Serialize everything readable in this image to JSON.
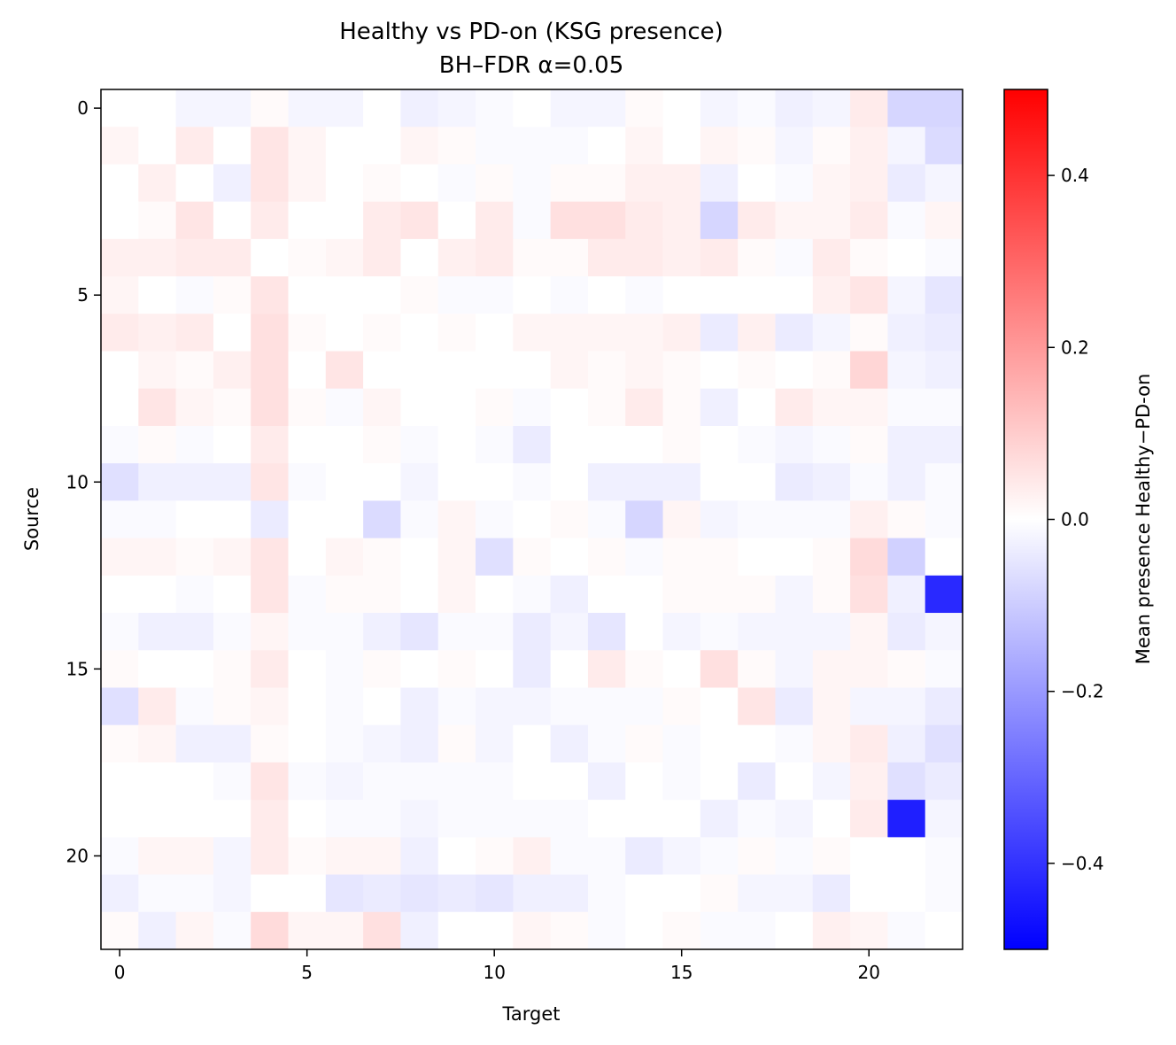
{
  "chart_data": {
    "type": "heatmap",
    "title": "Healthy vs PD-on (KSG presence)",
    "subtitle": "BH–FDR α=0.05",
    "xlabel": "Target",
    "ylabel": "Source",
    "colorbar_label": "Mean presence Healthy−PD-on",
    "x_ticks": [
      0,
      5,
      10,
      15,
      20
    ],
    "y_ticks": [
      0,
      5,
      10,
      15,
      20
    ],
    "x_tick_labels": [
      "0",
      "5",
      "10",
      "15",
      "20"
    ],
    "y_tick_labels": [
      "0",
      "5",
      "10",
      "15",
      "20"
    ],
    "colorbar_ticks": [
      -0.4,
      -0.2,
      0.0,
      0.2,
      0.4
    ],
    "colorbar_tick_labels": [
      "−0.4",
      "−0.2",
      "0.0",
      "0.2",
      "0.4"
    ],
    "vmin": -0.5,
    "vmax": 0.5,
    "colormap": "bwr",
    "grid": false,
    "rows": 23,
    "cols": 23,
    "values": [
      [
        0,
        0,
        -0.02,
        -0.02,
        0.01,
        -0.02,
        -0.02,
        0,
        -0.03,
        -0.02,
        -0.01,
        0,
        -0.02,
        -0.02,
        0.01,
        0,
        -0.02,
        -0.01,
        -0.03,
        -0.02,
        0.04,
        -0.08,
        -0.08
      ],
      [
        0.02,
        0,
        0.04,
        0,
        0.05,
        0.02,
        0,
        0,
        0.02,
        0.01,
        -0.01,
        -0.01,
        -0.01,
        0,
        0.02,
        0,
        0.02,
        0.01,
        -0.02,
        0.01,
        0.03,
        -0.02,
        -0.07
      ],
      [
        0,
        0.03,
        0,
        -0.03,
        0.05,
        0.02,
        0,
        0.01,
        0,
        -0.01,
        0.01,
        -0.01,
        0.01,
        0.01,
        0.03,
        0.03,
        -0.03,
        0,
        -0.01,
        0.02,
        0.03,
        -0.04,
        -0.02
      ],
      [
        0,
        0.01,
        0.05,
        0,
        0.04,
        0,
        0,
        0.04,
        0.05,
        0,
        0.04,
        -0.01,
        0.06,
        0.06,
        0.04,
        0.03,
        -0.08,
        0.04,
        0.02,
        0.02,
        0.04,
        -0.01,
        0.02
      ],
      [
        0.03,
        0.03,
        0.04,
        0.04,
        0,
        0.01,
        0.02,
        0.04,
        0,
        0.03,
        0.04,
        0.01,
        0.01,
        0.04,
        0.04,
        0.03,
        0.04,
        0.01,
        -0.01,
        0.04,
        0.01,
        0,
        -0.01
      ],
      [
        0.02,
        0,
        -0.01,
        0.01,
        0.05,
        0,
        0,
        0,
        0.01,
        -0.01,
        -0.01,
        0,
        -0.01,
        0,
        -0.01,
        0,
        0,
        0,
        0,
        0.03,
        0.05,
        -0.02,
        -0.05
      ],
      [
        0.04,
        0.03,
        0.04,
        0,
        0.06,
        0.01,
        0,
        0.01,
        0,
        0.01,
        0,
        0.02,
        0.02,
        0.02,
        0.02,
        0.03,
        -0.04,
        0.03,
        -0.04,
        -0.02,
        0.01,
        -0.03,
        -0.04
      ],
      [
        0,
        0.02,
        0.01,
        0.03,
        0.06,
        0,
        0.05,
        0,
        0,
        0,
        0,
        0,
        0.02,
        0.01,
        0.02,
        0.01,
        0,
        0.01,
        0,
        0.01,
        0.08,
        -0.02,
        -0.03
      ],
      [
        0,
        0.05,
        0.02,
        0.01,
        0.06,
        0.01,
        -0.01,
        0.02,
        0,
        0,
        0.01,
        -0.01,
        0,
        0.01,
        0.04,
        0.01,
        -0.03,
        0,
        0.04,
        0.02,
        0.02,
        -0.01,
        -0.01
      ],
      [
        -0.01,
        0.01,
        -0.01,
        0,
        0.04,
        0,
        0,
        0.01,
        -0.01,
        0,
        -0.01,
        -0.04,
        0,
        0,
        0,
        0.01,
        0,
        -0.01,
        -0.02,
        -0.01,
        0.01,
        -0.03,
        -0.03
      ],
      [
        -0.06,
        -0.03,
        -0.03,
        -0.03,
        0.05,
        -0.01,
        0,
        0,
        -0.02,
        0,
        0,
        -0.01,
        0,
        -0.03,
        -0.03,
        -0.03,
        0,
        0,
        -0.04,
        -0.03,
        -0.01,
        -0.03,
        -0.01
      ],
      [
        -0.01,
        -0.01,
        0,
        0,
        -0.04,
        0,
        0,
        -0.07,
        -0.01,
        0.02,
        -0.01,
        0,
        0.01,
        -0.01,
        -0.08,
        0.02,
        -0.02,
        -0.01,
        -0.01,
        -0.01,
        0.03,
        0.01,
        -0.01
      ],
      [
        0.02,
        0.02,
        0.01,
        0.02,
        0.05,
        0,
        0.02,
        0.01,
        0,
        0.02,
        -0.06,
        0.01,
        0,
        0.01,
        -0.01,
        0.01,
        0.01,
        0,
        0,
        0.01,
        0.07,
        -0.09,
        0
      ],
      [
        0,
        0,
        -0.01,
        0,
        0.05,
        -0.01,
        0.01,
        0.01,
        0,
        0.02,
        0,
        -0.01,
        -0.03,
        0,
        0,
        0.01,
        0.01,
        0.01,
        -0.02,
        0.01,
        0.06,
        -0.03,
        -0.42
      ],
      [
        -0.01,
        -0.03,
        -0.03,
        -0.01,
        0.02,
        -0.01,
        -0.01,
        -0.03,
        -0.05,
        -0.01,
        -0.01,
        -0.04,
        -0.02,
        -0.05,
        0,
        -0.02,
        -0.01,
        -0.02,
        -0.02,
        -0.02,
        0.02,
        -0.04,
        -0.02
      ],
      [
        0.01,
        0,
        0,
        0.01,
        0.04,
        0,
        -0.01,
        0.01,
        0,
        0.01,
        0,
        -0.04,
        0,
        0.04,
        0.01,
        0,
        0.06,
        0.01,
        -0.02,
        0.02,
        0.02,
        0.01,
        -0.01
      ],
      [
        -0.06,
        0.04,
        -0.01,
        0.01,
        0.02,
        0,
        -0.01,
        0,
        -0.03,
        -0.01,
        -0.02,
        -0.02,
        -0.01,
        -0.01,
        -0.01,
        0.01,
        0,
        0.05,
        -0.04,
        0.02,
        -0.02,
        -0.02,
        -0.04
      ],
      [
        0.01,
        0.02,
        -0.03,
        -0.03,
        0.01,
        0,
        -0.01,
        -0.02,
        -0.03,
        0.01,
        -0.02,
        0,
        -0.03,
        -0.01,
        0.01,
        -0.01,
        0,
        0,
        -0.01,
        0.02,
        0.04,
        -0.03,
        -0.06
      ],
      [
        0,
        0,
        0,
        -0.01,
        0.05,
        -0.01,
        -0.02,
        -0.01,
        -0.01,
        -0.01,
        -0.01,
        0,
        0,
        -0.03,
        0,
        -0.01,
        0,
        -0.04,
        0,
        -0.02,
        0.03,
        -0.06,
        -0.04
      ],
      [
        0,
        0,
        0,
        0,
        0.04,
        0,
        -0.01,
        -0.01,
        -0.02,
        -0.01,
        -0.01,
        -0.01,
        -0.01,
        0,
        0,
        0,
        -0.03,
        -0.01,
        -0.02,
        0,
        0.04,
        -0.44,
        -0.02
      ],
      [
        -0.01,
        0.02,
        0.02,
        -0.02,
        0.04,
        0.01,
        0.02,
        0.02,
        -0.03,
        0,
        0.01,
        0.03,
        -0.01,
        -0.01,
        -0.04,
        -0.02,
        -0.01,
        0.01,
        -0.01,
        0.01,
        0,
        0,
        -0.01
      ],
      [
        -0.03,
        -0.01,
        -0.01,
        -0.02,
        0,
        0,
        -0.05,
        -0.04,
        -0.05,
        -0.04,
        -0.05,
        -0.03,
        -0.03,
        -0.01,
        0,
        0,
        0.01,
        -0.02,
        -0.02,
        -0.04,
        0,
        0,
        -0.01
      ],
      [
        0.01,
        -0.03,
        0.02,
        -0.01,
        0.07,
        0.02,
        0.02,
        0.06,
        -0.03,
        0,
        0,
        0.02,
        0.01,
        -0.01,
        0,
        0.01,
        -0.01,
        -0.01,
        0,
        0.03,
        0.02,
        -0.01,
        0
      ]
    ]
  }
}
